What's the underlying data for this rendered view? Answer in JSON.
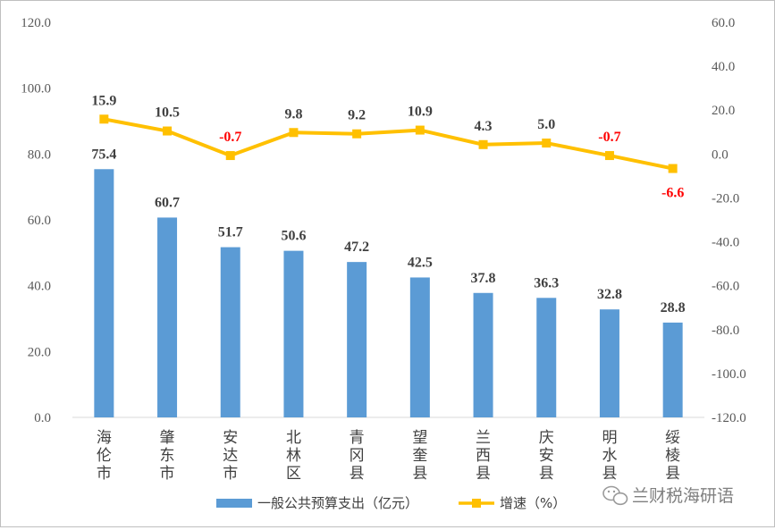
{
  "chart_data": {
    "type": "bar",
    "categories": [
      "海伦市",
      "肇东市",
      "安达市",
      "北林区",
      "青冈县",
      "望奎县",
      "兰西县",
      "庆安县",
      "明水县",
      "绥棱县"
    ],
    "series": [
      {
        "name": "一般公共预算支出（亿元）",
        "type": "bar",
        "axis": "left",
        "color": "#5b9bd5",
        "values": [
          75.4,
          60.7,
          51.7,
          50.6,
          47.2,
          42.5,
          37.8,
          36.3,
          32.8,
          28.8
        ],
        "labels": [
          "75.4",
          "60.7",
          "51.7",
          "50.6",
          "47.2",
          "42.5",
          "37.8",
          "36.3",
          "32.8",
          "28.8"
        ]
      },
      {
        "name": "增速（%）",
        "type": "line",
        "axis": "right",
        "color": "#ffc000",
        "values": [
          15.9,
          10.5,
          -0.7,
          9.8,
          9.2,
          10.9,
          4.3,
          5.0,
          -0.7,
          -6.6
        ],
        "labels": [
          "15.9",
          "10.5",
          "-0.7",
          "9.8",
          "9.2",
          "10.9",
          "4.3",
          "5.0",
          "-0.7",
          "-6.6"
        ]
      }
    ],
    "y_left": {
      "min": 0,
      "max": 120,
      "ticks": [
        "0.0",
        "20.0",
        "40.0",
        "60.0",
        "80.0",
        "100.0",
        "120.0"
      ]
    },
    "y_right": {
      "min": -120,
      "max": 60,
      "ticks": [
        "-120.0",
        "-100.0",
        "-80.0",
        "-60.0",
        "-40.0",
        "-20.0",
        "0.0",
        "20.0",
        "40.0",
        "60.0"
      ]
    },
    "grid": false,
    "legend_position": "bottom",
    "label_colors": {
      "positive": "#404040",
      "negative": "#ff0000"
    }
  },
  "watermark": {
    "text": "兰财税海研语",
    "icon": "wechat-icon"
  }
}
